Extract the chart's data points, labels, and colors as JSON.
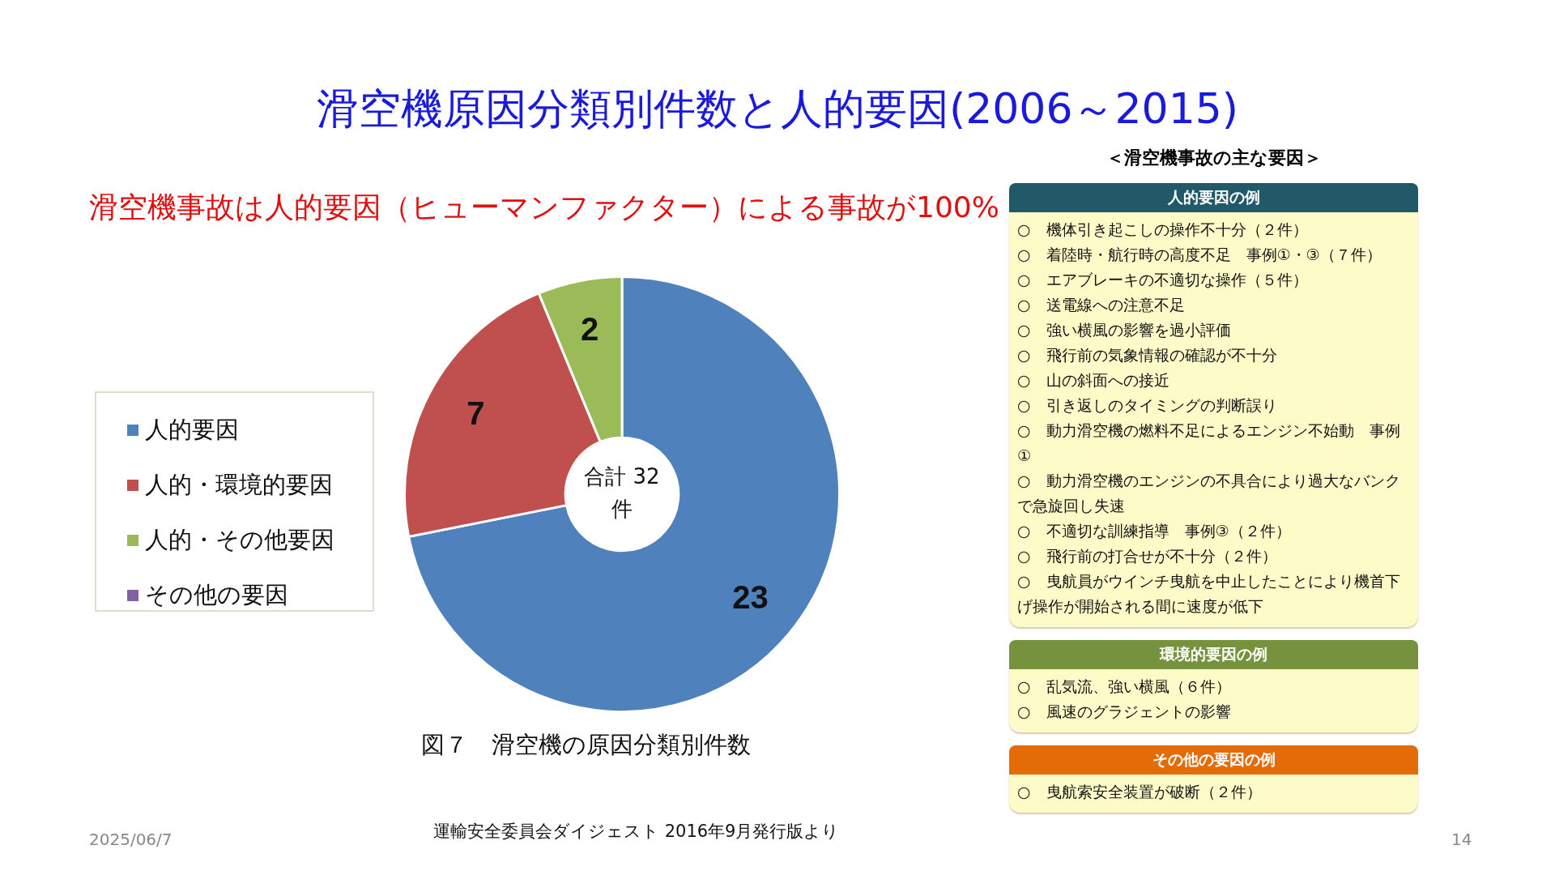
{
  "chart_data": {
    "type": "donut",
    "title": "滑空機原因分類別件数と人的要因(2006～2015)",
    "subtitle": "滑空機事故は人的要因（ヒューマンファクター）による事故が100%",
    "categories": [
      "人的要因",
      "人的・環境的要因",
      "人的・その他要因",
      "その他の要因"
    ],
    "values": [
      23,
      7,
      2,
      0
    ],
    "colors": [
      "#4f81bd",
      "#c0504d",
      "#9bbb59",
      "#8064a2"
    ],
    "value_labels": [
      "23",
      "7",
      "2",
      null
    ],
    "legend": "left",
    "annotations": [
      "図７　滑空機の原因分類別件数",
      "合計 32 件",
      "＜滑空機事故の主な要因＞",
      "人的要因の例",
      "○　機体引き起こしの操作不十分（２件）",
      "○　着陸時・航行時の高度不足　事例①・③（７件）",
      "○　エアブレーキの不適切な操作（５件）",
      "○　送電線への注意不足",
      "○　強い横風の影響を過小評価",
      "○　飛行前の気象情報の確認が不十分",
      "○　山の斜面への接近",
      "○　引き返しのタイミングの判断誤り",
      "○　動力滑空機の燃料不足によるエンジン不始動　事例①",
      "○　動力滑空機のエンジンの不具合により過大なバンクで急旋回し失速",
      "○　不適切な訓練指導　事例③（２件）",
      "○　飛行前の打合せが不十分（２件）",
      "○　曳航員がウインチ曳航を中止したことにより機首下げ操作が開始される間に速度が低下",
      "環境的要因の例",
      "○　乱気流、強い横風（６件）",
      "○　風速のグラジェントの影響",
      "その他の要因の例",
      "○　曳航索安全装置が破断（２件）",
      "運輸安全委員会ダイジェスト 2016年9月発行版より",
      "2025/06/7",
      "14"
    ]
  }
}
